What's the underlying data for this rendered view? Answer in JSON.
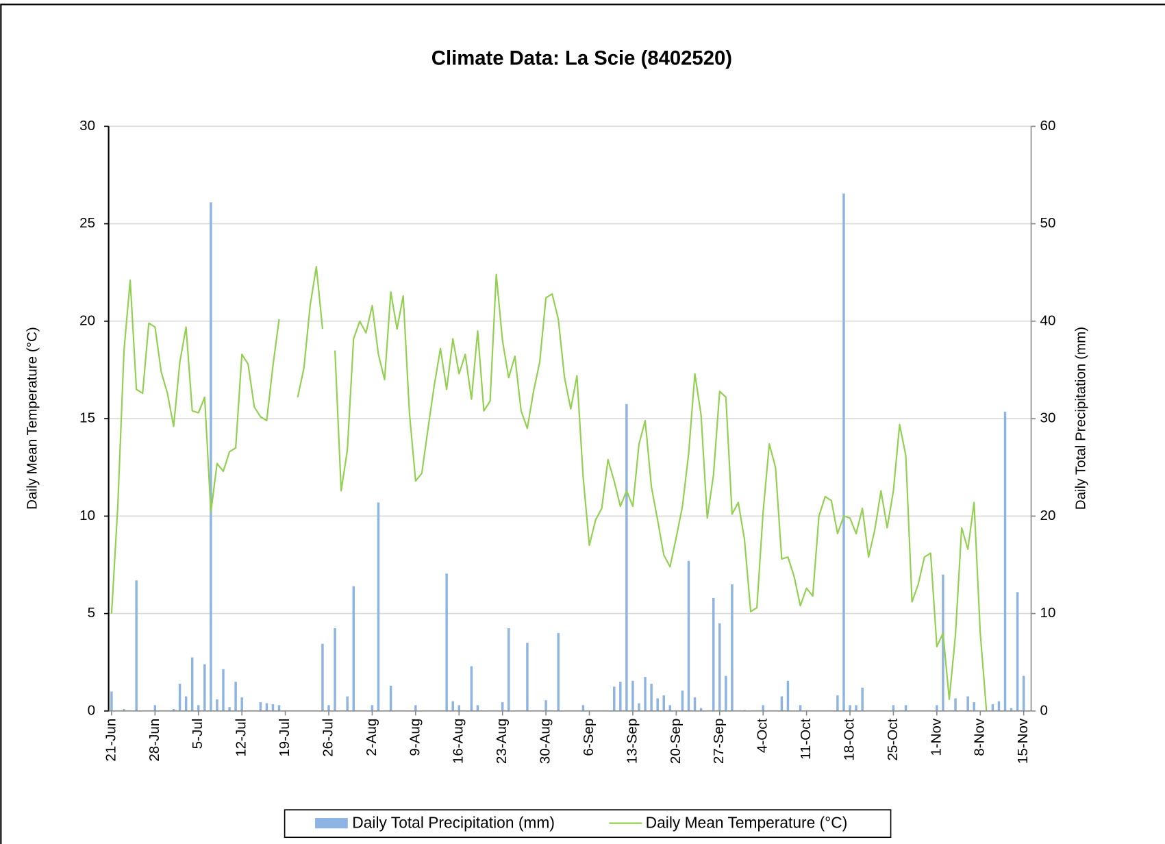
{
  "chart_data": {
    "type": "combo",
    "title": "Climate Data: La Scie (8402520)",
    "y_label": "Daily Mean Temperature (°C)",
    "y2_label": "Daily Total Precipitation (mm)",
    "categories": [
      "21-Jun",
      null,
      null,
      null,
      null,
      null,
      null,
      "28-Jun",
      null,
      null,
      null,
      null,
      null,
      null,
      "5-Jul",
      null,
      null,
      null,
      null,
      null,
      null,
      "12-Jul",
      null,
      null,
      null,
      null,
      null,
      null,
      "19-Jul",
      null,
      null,
      null,
      null,
      null,
      null,
      "26-Jul",
      null,
      null,
      null,
      null,
      null,
      null,
      "2-Aug",
      null,
      null,
      null,
      null,
      null,
      null,
      "9-Aug",
      null,
      null,
      null,
      null,
      null,
      null,
      "16-Aug",
      null,
      null,
      null,
      null,
      null,
      null,
      "23-Aug",
      null,
      null,
      null,
      null,
      null,
      null,
      "30-Aug",
      null,
      null,
      null,
      null,
      null,
      null,
      "6-Sep",
      null,
      null,
      null,
      null,
      null,
      null,
      "13-Sep",
      null,
      null,
      null,
      null,
      null,
      null,
      "20-Sep",
      null,
      null,
      null,
      null,
      null,
      null,
      "27-Sep",
      null,
      null,
      null,
      null,
      null,
      null,
      "4-Oct",
      null,
      null,
      null,
      null,
      null,
      null,
      "11-Oct",
      null,
      null,
      null,
      null,
      null,
      null,
      "18-Oct",
      null,
      null,
      null,
      null,
      null,
      null,
      "25-Oct",
      null,
      null,
      null,
      null,
      null,
      null,
      "1-Nov",
      null,
      null,
      null,
      null,
      null,
      null,
      "8-Nov",
      null,
      null,
      null,
      null,
      null,
      null,
      "15-Nov"
    ],
    "series": [
      {
        "name": "Daily Total Precipitation (mm)",
        "type": "bar",
        "axis": "y2",
        "color": "#8eb4e3",
        "values": [
          2.0,
          0,
          0.2,
          0,
          13.4,
          0,
          0,
          0.6,
          0,
          0,
          0.2,
          2.8,
          1.5,
          5.5,
          0.6,
          4.8,
          52.2,
          1.2,
          4.3,
          0.4,
          3.0,
          1.4,
          0,
          0,
          0.9,
          0.8,
          0.7,
          0.6,
          0,
          0,
          0,
          0,
          0,
          0,
          6.9,
          0.6,
          8.5,
          0,
          1.5,
          12.8,
          0,
          0,
          0.6,
          21.4,
          0,
          2.6,
          0,
          0,
          0,
          0.6,
          0,
          0,
          0,
          0,
          14.1,
          1.0,
          0.6,
          0,
          4.6,
          0.6,
          0,
          0,
          0,
          0.9,
          8.5,
          0,
          0,
          7.0,
          0,
          0,
          1.1,
          0,
          8.0,
          0,
          0,
          0,
          0.6,
          0,
          0,
          0,
          0,
          2.5,
          3.0,
          31.5,
          3.1,
          0.8,
          3.5,
          2.8,
          1.3,
          1.6,
          0.6,
          0,
          2.1,
          15.4,
          1.4,
          0.3,
          0,
          11.6,
          9.0,
          3.6,
          13.0,
          0,
          0.1,
          0,
          0,
          0.6,
          0,
          0,
          1.5,
          3.1,
          0,
          0.6,
          0,
          0,
          0,
          0,
          0,
          1.6,
          53.1,
          0.6,
          0.6,
          2.4,
          0,
          0,
          0,
          0,
          0.6,
          0,
          0.6,
          0,
          0,
          0,
          0,
          0.6,
          14.0,
          0,
          1.3,
          0,
          1.5,
          0.9,
          0,
          0,
          0.7,
          1.0,
          30.7,
          0.3,
          12.2,
          3.6
        ]
      },
      {
        "name": "Daily Mean Temperature (°C)",
        "type": "line",
        "axis": "y",
        "color": "#92d050",
        "values": [
          5.0,
          10.5,
          18.5,
          22.1,
          16.5,
          16.3,
          19.9,
          19.7,
          17.4,
          16.3,
          14.6,
          17.9,
          19.7,
          15.4,
          15.3,
          16.1,
          10.2,
          12.7,
          12.3,
          13.3,
          13.5,
          18.3,
          17.8,
          15.6,
          15.1,
          14.9,
          17.7,
          20.1,
          null,
          null,
          16.1,
          17.6,
          20.8,
          22.8,
          19.6,
          null,
          18.5,
          11.3,
          13.4,
          19.1,
          20.0,
          19.4,
          20.8,
          18.3,
          17.0,
          21.5,
          19.6,
          21.3,
          15.3,
          11.8,
          12.2,
          14.5,
          16.7,
          18.6,
          16.5,
          19.1,
          17.3,
          18.3,
          16.0,
          19.5,
          15.4,
          15.9,
          22.4,
          19.0,
          17.1,
          18.2,
          15.4,
          14.5,
          16.4,
          17.9,
          21.2,
          21.4,
          20.1,
          17.1,
          15.5,
          17.2,
          12.0,
          8.5,
          9.8,
          10.4,
          12.9,
          11.8,
          10.5,
          11.3,
          10.5,
          13.7,
          14.9,
          11.5,
          9.8,
          8.0,
          7.4,
          8.9,
          10.5,
          13.2,
          17.3,
          15.2,
          9.9,
          12.1,
          16.4,
          16.1,
          10.1,
          10.7,
          8.8,
          5.1,
          5.3,
          10.2,
          13.7,
          12.5,
          7.8,
          7.9,
          6.9,
          5.4,
          6.3,
          5.9,
          10.0,
          11.0,
          10.8,
          9.1,
          10.0,
          9.9,
          9.1,
          10.4,
          7.9,
          9.3,
          11.3,
          9.4,
          11.3,
          14.7,
          13.1,
          5.6,
          6.5,
          7.9,
          8.1,
          3.3,
          4.0,
          0.6,
          3.9,
          9.4,
          8.3,
          10.7,
          4.0,
          0.0,
          null,
          null,
          null,
          null,
          null,
          null
        ]
      }
    ],
    "ylim": [
      0,
      30
    ],
    "yticks": [
      0,
      5,
      10,
      15,
      20,
      25,
      30
    ],
    "y2lim": [
      0,
      60
    ],
    "y2ticks": [
      0,
      10,
      20,
      30,
      40,
      50,
      60
    ],
    "grid": true,
    "legend": "bottom"
  }
}
